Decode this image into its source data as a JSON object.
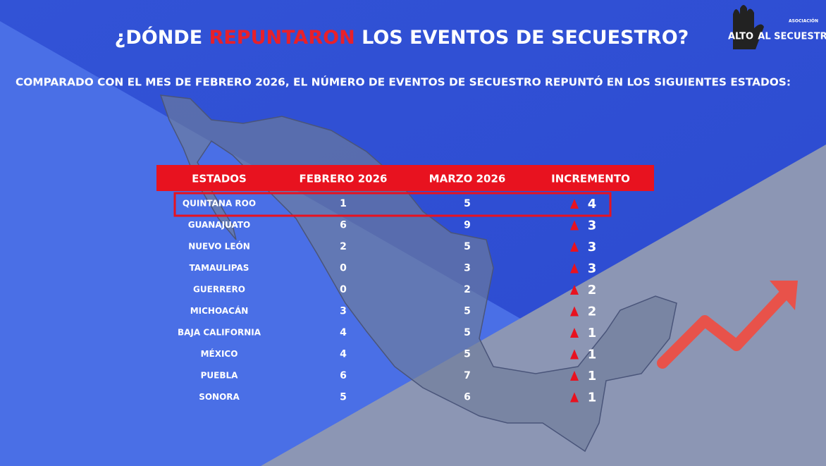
{
  "header": {
    "title_parts": [
      "¿DÓNDE ",
      "REPUNTARON",
      " LOS EVENTOS DE SECUESTRO?"
    ],
    "subtitle": "COMPARADO CON EL MES DE FEBRERO 2026, EL NÚMERO DE EVENTOS DE SECUESTRO REPUNTÓ EN LOS SIGUIENTES ESTADOS:"
  },
  "logo": {
    "top": "ASOCIACIÓN",
    "left": "ALTO",
    "right": "AL SECUESTRO"
  },
  "table": {
    "columns": [
      "ESTADOS",
      "FEBRERO 2026",
      "MARZO 2026",
      "INCREMENTO"
    ],
    "rows": [
      [
        "QUINTANA ROO",
        1,
        5,
        4
      ],
      [
        "GUANAJUATO",
        6,
        9,
        3
      ],
      [
        "NUEVO LEÓN",
        2,
        5,
        3
      ],
      [
        "TAMAULIPAS",
        0,
        3,
        3
      ],
      [
        "GUERRERO",
        0,
        2,
        2
      ],
      [
        "MICHOACÁN",
        3,
        5,
        2
      ],
      [
        "BAJA CALIFORNIA",
        4,
        5,
        1
      ],
      [
        "MÉXICO",
        4,
        5,
        1
      ],
      [
        "PUEBLA",
        6,
        7,
        1
      ],
      [
        "SONORA",
        5,
        6,
        1
      ]
    ]
  }
}
